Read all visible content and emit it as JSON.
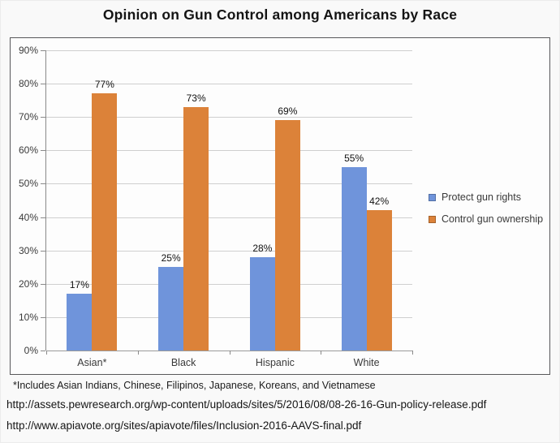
{
  "page": {
    "title": "Opinion on Gun Control among Americans by Race",
    "footnote": "*Includes Asian Indians, Chinese, Filipinos, Japanese, Koreans, and Vietnamese",
    "sources": [
      "http://assets.pewresearch.org/wp-content/uploads/sites/5/2016/08/08-26-16-Gun-policy-release.pdf",
      "http://www.apiavote.org/sites/apiavote/files/Inclusion-2016-AAVS-final.pdf"
    ]
  },
  "chart_data": {
    "type": "bar",
    "title": "Opinion on Gun Control among Americans by Race",
    "categories": [
      "Asian*",
      "Black",
      "Hispanic",
      "White"
    ],
    "series": [
      {
        "name": "Protect gun rights",
        "color": "#6f94db",
        "values": [
          17,
          25,
          28,
          55
        ]
      },
      {
        "name": "Control gun ownership",
        "color": "#dc8239",
        "values": [
          77,
          73,
          69,
          42
        ]
      }
    ],
    "data_labels": [
      [
        "17%",
        "25%",
        "28%",
        "55%"
      ],
      [
        "77%",
        "73%",
        "69%",
        "42%"
      ]
    ],
    "yticks": [
      "0%",
      "10%",
      "20%",
      "30%",
      "40%",
      "50%",
      "60%",
      "70%",
      "80%",
      "90%"
    ],
    "ylim": [
      0,
      90
    ],
    "ytick_step": 10,
    "grid": true,
    "legend_position": "right",
    "style_colors": {
      "grid": "#cfcfcf",
      "axis": "#8a8a8a",
      "tick_text": "#3a3a3a",
      "data_label_text": "#111111"
    }
  }
}
